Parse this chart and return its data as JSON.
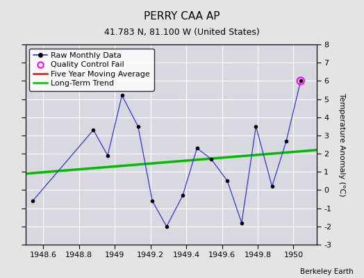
{
  "title": "PERRY CAA AP",
  "subtitle": "41.783 N, 81.100 W (United States)",
  "credit": "Berkeley Earth",
  "xlim": [
    1948.5,
    1950.13
  ],
  "ylim": [
    -3,
    8
  ],
  "xticks": [
    1948.6,
    1948.8,
    1949.0,
    1949.2,
    1949.4,
    1949.6,
    1949.8,
    1950.0
  ],
  "xticklabels": [
    "1948.6",
    "1948.8",
    "1949",
    "1949.2",
    "1949.4",
    "1949.6",
    "1949.8",
    "1950"
  ],
  "yticks": [
    -3,
    -2,
    -1,
    0,
    1,
    2,
    3,
    4,
    5,
    6,
    7,
    8
  ],
  "yticklabels": [
    "-3",
    "-2",
    "-1",
    "0",
    "1",
    "2",
    "3",
    "4",
    "5",
    "6",
    "7",
    "8"
  ],
  "raw_x": [
    1948.54,
    1948.88,
    1948.96,
    1949.04,
    1949.13,
    1949.21,
    1949.29,
    1949.38,
    1949.46,
    1949.54,
    1949.63,
    1949.71,
    1949.79,
    1949.88,
    1949.96,
    1950.04
  ],
  "raw_y": [
    -0.6,
    3.3,
    1.9,
    5.2,
    3.5,
    -0.6,
    -2.0,
    -0.3,
    2.3,
    1.7,
    0.5,
    -1.8,
    3.5,
    0.2,
    2.7,
    6.0
  ],
  "qc_fail_x": [
    1950.04
  ],
  "qc_fail_y": [
    6.0
  ],
  "trend_x": [
    1948.5,
    1950.13
  ],
  "trend_y": [
    0.9,
    2.2
  ],
  "raw_color": "#3333cc",
  "raw_marker_color": "#000000",
  "qc_color": "#ff00ff",
  "trend_color": "#00bb00",
  "moving_avg_color": "#ff0000",
  "bg_color": "#e4e4e4",
  "plot_bg_color": "#d8d8e0",
  "grid_color": "#ffffff",
  "ylabel": "Temperature Anomaly (°C)",
  "legend_labels": [
    "Raw Monthly Data",
    "Quality Control Fail",
    "Five Year Moving Average",
    "Long-Term Trend"
  ],
  "title_fontsize": 11,
  "subtitle_fontsize": 9,
  "tick_fontsize": 8,
  "legend_fontsize": 8
}
